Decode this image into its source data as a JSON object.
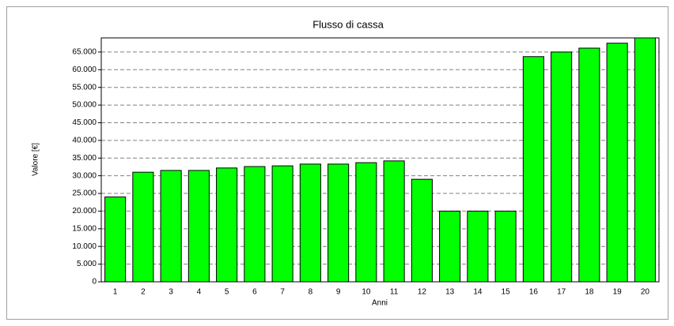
{
  "chart_data": {
    "type": "bar",
    "title": "Flusso di cassa",
    "x_label": "Anni",
    "y_label": "Valore [€]",
    "categories": [
      "1",
      "2",
      "3",
      "4",
      "5",
      "6",
      "7",
      "8",
      "9",
      "10",
      "11",
      "12",
      "13",
      "14",
      "15",
      "16",
      "17",
      "18",
      "19",
      "20"
    ],
    "values": [
      24000,
      31000,
      31500,
      31500,
      32200,
      32600,
      32800,
      33300,
      33300,
      33700,
      34200,
      29000,
      20000,
      20000,
      20000,
      63700,
      65000,
      66100,
      67500,
      69000
    ],
    "color": "#00ff00",
    "ylim": [
      0,
      69000
    ],
    "yticks": [
      0,
      {
        "value": 5000,
        "label": "5.000"
      },
      {
        "value": 10000,
        "label": "10.000"
      },
      {
        "value": 15000,
        "label": "15.000"
      },
      {
        "value": 20000,
        "label": "20.000"
      },
      {
        "value": 25000,
        "label": "25.000"
      },
      {
        "value": 30000,
        "label": "30.000"
      },
      {
        "value": 35000,
        "label": "35.000"
      },
      {
        "value": 40000,
        "label": "40.000"
      },
      {
        "value": 45000,
        "label": "45.000"
      },
      {
        "value": 50000,
        "label": "50.000"
      },
      {
        "value": 55000,
        "label": "55.000"
      },
      {
        "value": 60000,
        "label": "60.000"
      },
      {
        "value": 65000,
        "label": "65.000"
      }
    ],
    "grid": true
  }
}
